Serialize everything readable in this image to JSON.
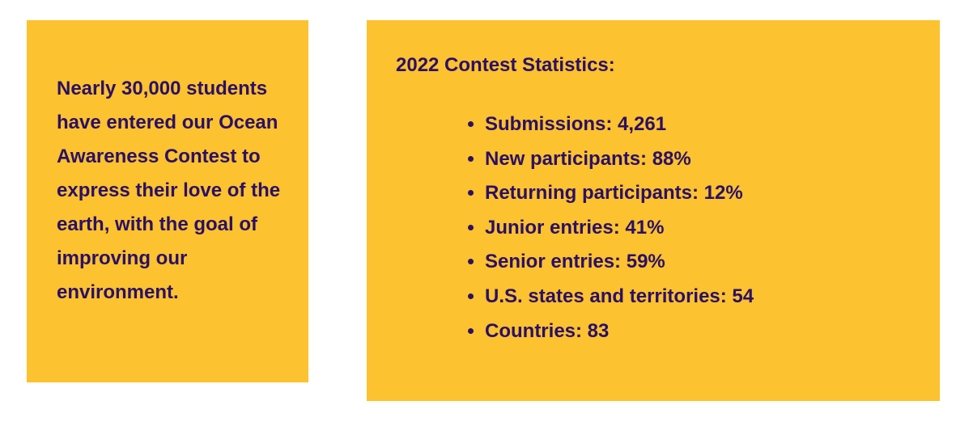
{
  "intro": {
    "text": "Nearly 30,000 students have entered our Ocean Awareness Contest to express their love of the earth, with the goal of improving our environment."
  },
  "stats": {
    "title": "2022 Contest Statistics:",
    "items": [
      {
        "label": "Submissions: 4,261"
      },
      {
        "label": "New participants: 88%"
      },
      {
        "label": "Returning participants: 12%"
      },
      {
        "label": "Junior entries: 41%"
      },
      {
        "label": "Senior entries: 59%"
      },
      {
        "label": "U.S. states and territories: 54"
      },
      {
        "label": "Countries: 83"
      }
    ]
  },
  "colors": {
    "card_background": "#fcc22f",
    "text": "#2b1066",
    "page_background": "#ffffff"
  }
}
